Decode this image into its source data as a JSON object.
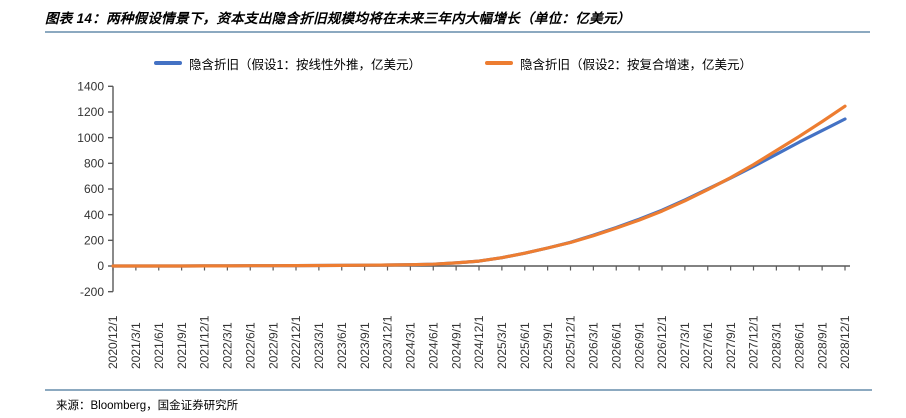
{
  "header": {
    "title": "图表 14：两种假设情景下，资本支出隐含折旧规模均将在未来三年内大幅增长（单位：亿美元）"
  },
  "footer": {
    "source": "来源：Bloomberg，国金证券研究所"
  },
  "rule_color": "#8CA9C0",
  "chart_data": {
    "type": "line",
    "title": "图表 14：两种假设情景下，资本支出隐含折旧规模均将在未来三年内大幅增长（单位：亿美元）",
    "xlabel": "",
    "ylabel": "",
    "ylim": [
      -200,
      1400
    ],
    "ytick_step": 200,
    "grid": false,
    "legend_position": "top",
    "axis_color": "#595959",
    "categories": [
      "2020/12/1",
      "2021/3/1",
      "2021/6/1",
      "2021/9/1",
      "2021/12/1",
      "2022/3/1",
      "2022/6/1",
      "2022/9/1",
      "2022/12/1",
      "2023/3/1",
      "2023/6/1",
      "2023/9/1",
      "2023/12/1",
      "2024/3/1",
      "2024/6/1",
      "2024/9/1",
      "2024/12/1",
      "2025/3/1",
      "2025/6/1",
      "2025/9/1",
      "2025/12/1",
      "2026/3/1",
      "2026/6/1",
      "2026/9/1",
      "2026/12/1",
      "2027/3/1",
      "2027/6/1",
      "2027/9/1",
      "2027/12/1",
      "2028/3/1",
      "2028/6/1",
      "2028/9/1",
      "2028/12/1"
    ],
    "series": [
      {
        "name": "隐含折旧（假设1：按线性外推，亿美元）",
        "color": "#4472C4",
        "values": [
          0,
          0,
          0,
          0,
          1,
          1,
          2,
          2,
          3,
          4,
          5,
          6,
          8,
          10,
          14,
          24,
          38,
          65,
          100,
          140,
          185,
          240,
          300,
          365,
          435,
          515,
          600,
          685,
          775,
          870,
          965,
          1055,
          1145
        ]
      },
      {
        "name": "隐含折旧（假设2：按复合增速，亿美元）",
        "color": "#ED7D31",
        "values": [
          0,
          0,
          0,
          0,
          1,
          1,
          2,
          2,
          3,
          4,
          5,
          6,
          8,
          10,
          14,
          24,
          38,
          65,
          100,
          140,
          183,
          236,
          295,
          358,
          428,
          508,
          595,
          688,
          790,
          900,
          1010,
          1125,
          1245
        ]
      }
    ]
  }
}
